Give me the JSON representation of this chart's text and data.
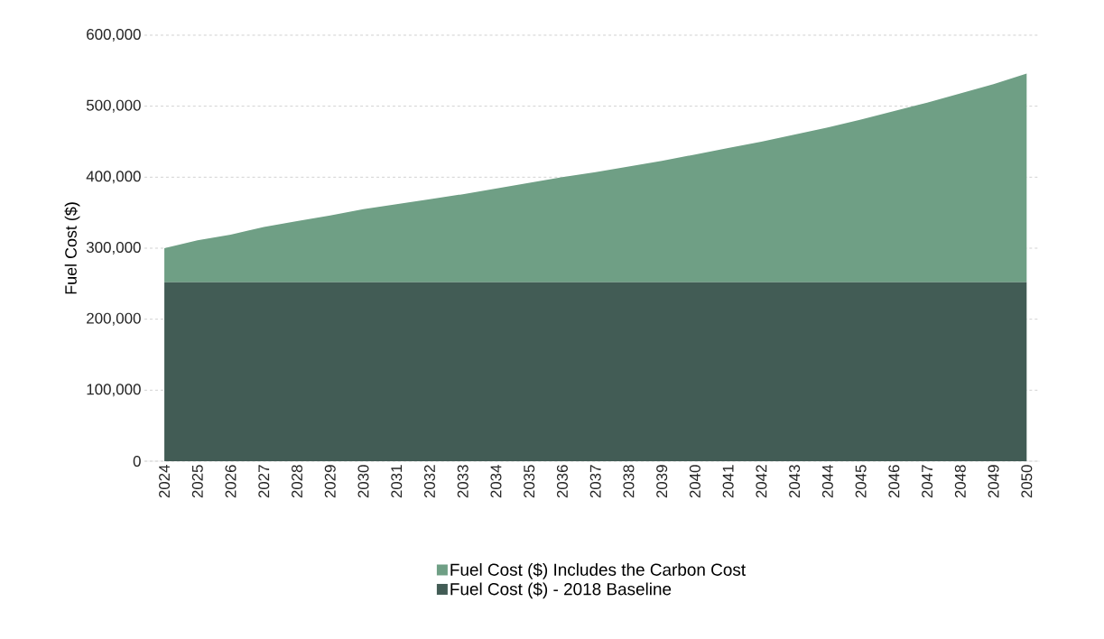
{
  "chart_data": {
    "type": "area",
    "stacked": true,
    "ylabel": "Fuel Cost ($)",
    "categories": [
      "2024",
      "2025",
      "2026",
      "2027",
      "2028",
      "2029",
      "2030",
      "2031",
      "2032",
      "2033",
      "2034",
      "2035",
      "2036",
      "2037",
      "2038",
      "2039",
      "2040",
      "2041",
      "2042",
      "2043",
      "2044",
      "2045",
      "2046",
      "2047",
      "2048",
      "2049",
      "2050"
    ],
    "series": [
      {
        "name": "Fuel Cost ($) - 2018 Baseline",
        "color": "#425c55",
        "values": [
          252000,
          252000,
          252000,
          252000,
          252000,
          252000,
          252000,
          252000,
          252000,
          252000,
          252000,
          252000,
          252000,
          252000,
          252000,
          252000,
          252000,
          252000,
          252000,
          252000,
          252000,
          252000,
          252000,
          252000,
          252000,
          252000,
          252000
        ]
      },
      {
        "name": "Fuel Cost ($) Includes the Carbon Cost",
        "color": "#6f9f85",
        "values": [
          48000,
          59000,
          67000,
          78000,
          86000,
          94000,
          103000,
          110000,
          117000,
          124000,
          132000,
          140000,
          148000,
          155000,
          163000,
          171000,
          180000,
          189000,
          198000,
          208000,
          218000,
          229000,
          241000,
          253000,
          266000,
          279000,
          294000
        ]
      }
    ],
    "ylim": [
      0,
      600000
    ],
    "yticks": [
      0,
      {
        "value": 100000,
        "label": "100,000"
      },
      {
        "value": 200000,
        "label": "200,000"
      },
      {
        "value": 300000,
        "label": "300,000"
      },
      {
        "value": 400000,
        "label": "400,000"
      },
      {
        "value": 500000,
        "label": "500,000"
      },
      {
        "value": 600000,
        "label": "600,000"
      }
    ],
    "grid": "y",
    "legend": "bottom"
  }
}
